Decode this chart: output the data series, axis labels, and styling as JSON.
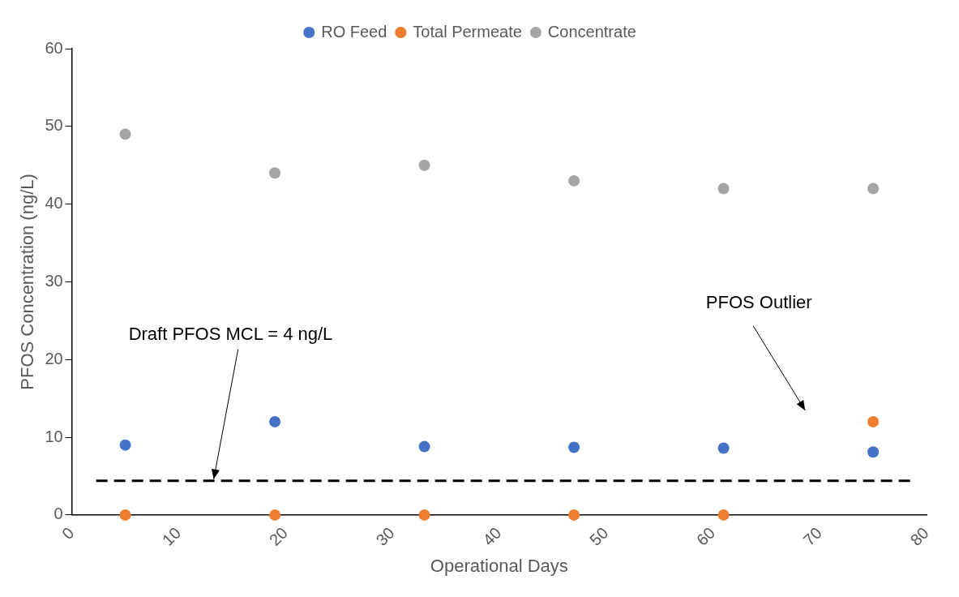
{
  "chart_data": {
    "type": "scatter",
    "xlabel": "Operational Days",
    "ylabel": "PFOS Concentration (ng/L)",
    "x": [
      5,
      19,
      33,
      47,
      61,
      75
    ],
    "series": [
      {
        "name": "RO Feed",
        "color": "#4472c4",
        "values": [
          9,
          12,
          8.8,
          8.7,
          8.6,
          8.1
        ]
      },
      {
        "name": "Total Permeate",
        "color": "#ed7d31",
        "values": [
          0,
          0,
          0,
          0,
          0,
          12
        ]
      },
      {
        "name": "Concentrate",
        "color": "#a5a5a5",
        "values": [
          49,
          44,
          45,
          43,
          42,
          42
        ]
      }
    ],
    "xlim": [
      0,
      80
    ],
    "xticks": [
      0,
      10,
      20,
      30,
      40,
      50,
      60,
      70,
      80
    ],
    "ylim": [
      0,
      60
    ],
    "yticks": [
      0,
      10,
      20,
      30,
      40,
      50,
      60
    ],
    "ref_lines": [
      {
        "axis": "y",
        "value": 4.4,
        "label": "Draft PFOS MCL = 4 ng/L",
        "color": "#000000",
        "line_style": "dashed"
      }
    ],
    "annotations": [
      "PFOS Outlier"
    ],
    "grid": false,
    "legend": "top",
    "marker": "circle"
  }
}
